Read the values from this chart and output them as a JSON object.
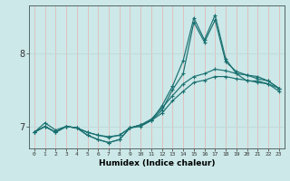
{
  "xlabel": "Humidex (Indice chaleur)",
  "background_color": "#cce8e8",
  "line_color": "#1a7070",
  "grid_color_v": "#e8b0b0",
  "grid_color_h": "#c0d8d8",
  "x_ticks": [
    0,
    1,
    2,
    3,
    4,
    5,
    6,
    7,
    8,
    9,
    10,
    11,
    12,
    13,
    14,
    15,
    16,
    17,
    18,
    19,
    20,
    21,
    22,
    23
  ],
  "y_ticks": [
    7,
    8
  ],
  "ylim": [
    6.7,
    8.65
  ],
  "xlim": [
    -0.5,
    23.5
  ],
  "line_spiky": [
    6.92,
    7.05,
    6.95,
    7.0,
    6.98,
    6.88,
    6.82,
    6.78,
    6.82,
    6.98,
    7.02,
    7.08,
    7.28,
    7.55,
    7.9,
    8.48,
    8.18,
    8.52,
    7.92,
    7.72,
    7.62,
    7.62,
    7.58,
    7.52
  ],
  "line_mid1": [
    6.92,
    7.0,
    6.92,
    7.0,
    6.98,
    6.88,
    6.82,
    6.78,
    6.82,
    6.98,
    7.0,
    7.08,
    7.22,
    7.5,
    7.72,
    8.42,
    8.15,
    8.45,
    7.88,
    7.75,
    7.7,
    7.65,
    7.62,
    7.52
  ],
  "line_smooth1": [
    6.92,
    7.0,
    6.92,
    7.0,
    6.98,
    6.92,
    6.88,
    6.85,
    6.88,
    6.98,
    7.02,
    7.1,
    7.25,
    7.42,
    7.58,
    7.68,
    7.72,
    7.78,
    7.76,
    7.72,
    7.7,
    7.68,
    7.62,
    7.52
  ],
  "line_smooth2": [
    6.92,
    7.0,
    6.92,
    7.0,
    6.98,
    6.92,
    6.88,
    6.86,
    6.88,
    6.98,
    7.02,
    7.08,
    7.18,
    7.35,
    7.48,
    7.6,
    7.63,
    7.68,
    7.68,
    7.65,
    7.63,
    7.6,
    7.58,
    7.48
  ]
}
